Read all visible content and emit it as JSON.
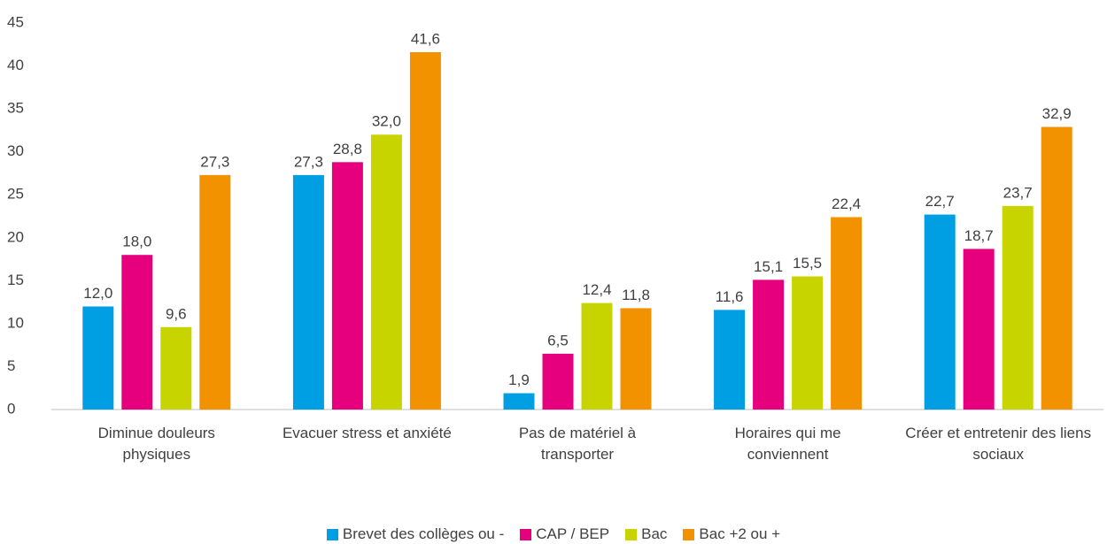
{
  "chart_data": {
    "type": "bar",
    "categories": [
      "Diminue douleurs physiques",
      "Evacuer stress et anxiété",
      "Pas de matériel à transporter",
      "Horaires qui me conviennent",
      "Créer et entretenir des liens sociaux"
    ],
    "series": [
      {
        "name": "Brevet des collèges ou -",
        "color": "#009fe3",
        "values": [
          12.0,
          27.3,
          1.9,
          11.6,
          22.7
        ],
        "value_labels": [
          "12,0",
          "27,3",
          "1,9",
          "11,6",
          "22,7"
        ]
      },
      {
        "name": "CAP / BEP",
        "color": "#e6007e",
        "values": [
          18.0,
          28.8,
          6.5,
          15.1,
          18.7
        ],
        "value_labels": [
          "18,0",
          "28,8",
          "6,5",
          "15,1",
          "18,7"
        ]
      },
      {
        "name": "Bac",
        "color": "#c8d400",
        "values": [
          9.6,
          32.0,
          12.4,
          15.5,
          23.7
        ],
        "value_labels": [
          "9,6",
          "32,0",
          "12,4",
          "15,5",
          "23,7"
        ]
      },
      {
        "name": "Bac +2 ou +",
        "color": "#f39200",
        "values": [
          27.3,
          41.6,
          11.8,
          22.4,
          32.9
        ],
        "value_labels": [
          "27,3",
          "41,6",
          "11,8",
          "22,4",
          "32,9"
        ]
      }
    ],
    "ylim": [
      0,
      45
    ],
    "yticks": [
      0,
      5,
      10,
      15,
      20,
      25,
      30,
      35,
      40,
      45
    ],
    "grid": false,
    "legend": "bottom"
  }
}
